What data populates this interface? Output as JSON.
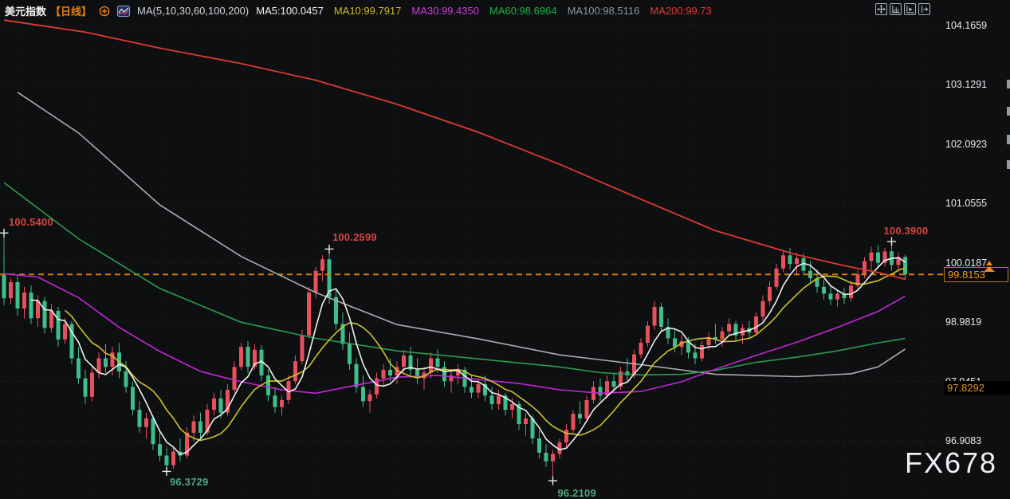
{
  "header": {
    "title": "美元指数",
    "timeframe": "【日线】",
    "ma_params": "MA(5,10,30,60,100,200)",
    "ma_legend": [
      {
        "label": "MA5:100.0457",
        "color": "#f2f2f2"
      },
      {
        "label": "MA10:99.7917",
        "color": "#cdbd29"
      },
      {
        "label": "MA30:99.4350",
        "color": "#c93fd6"
      },
      {
        "label": "MA60:98.6964",
        "color": "#1db34a"
      },
      {
        "label": "MA100:98.5116",
        "color": "#8f97a1"
      },
      {
        "label": "MA200:99.73",
        "color": "#e23a2e"
      }
    ]
  },
  "toolbar": {
    "icons": [
      "move-icon",
      "scale-bars-icon",
      "scale-play-icon",
      "pan-right-icon"
    ]
  },
  "axis": {
    "ticks": [
      {
        "text": "104.1659",
        "price": 104.1659
      },
      {
        "text": "103.1291",
        "price": 103.1291
      },
      {
        "text": "102.0923",
        "price": 102.0923
      },
      {
        "text": "101.0555",
        "price": 101.0555
      },
      {
        "text": "100.0187",
        "price": 100.0187
      },
      {
        "text": "98.9819",
        "price": 98.9819
      },
      {
        "text": "97.9451",
        "price": 97.9451
      },
      {
        "text": "96.9083",
        "price": 96.9083
      }
    ]
  },
  "price_line": {
    "label": "99.8153",
    "price": 99.8153
  },
  "level_label": {
    "label": "97.8292",
    "price": 97.8292
  },
  "watermark": "FX678",
  "colors": {
    "up_candle": "#e8515c",
    "down_candle": "#3fbe8b",
    "price_line": "#cf7d08",
    "annotation_high": "#d9453f",
    "annotation_low": "#4fa87d",
    "cross_marker": "#e8e8e8"
  },
  "chart_data": {
    "type": "candlestick",
    "title": "美元指数 日线 (US Dollar Index, daily)",
    "ylim": [
      95.95,
      104.45
    ],
    "y_axis_ticks": [
      104.1659,
      103.1291,
      102.0923,
      101.0555,
      100.0187,
      98.9819,
      97.9451,
      96.9083
    ],
    "last_price": 99.8153,
    "grid": true,
    "legend_position": "top",
    "candles": [
      [
        99.82,
        100.54,
        99.28,
        99.4
      ],
      [
        99.4,
        99.75,
        99.3,
        99.68
      ],
      [
        99.68,
        99.8,
        99.1,
        99.22
      ],
      [
        99.22,
        99.6,
        99.05,
        99.5
      ],
      [
        99.5,
        99.62,
        98.95,
        99.05
      ],
      [
        99.05,
        99.45,
        98.9,
        99.35
      ],
      [
        99.35,
        99.42,
        98.78,
        98.88
      ],
      [
        98.88,
        99.3,
        98.8,
        99.18
      ],
      [
        99.18,
        99.25,
        98.55,
        98.68
      ],
      [
        98.68,
        99.05,
        98.6,
        98.95
      ],
      [
        98.95,
        99.0,
        98.25,
        98.35
      ],
      [
        98.35,
        98.55,
        97.9,
        98.0
      ],
      [
        98.0,
        98.15,
        97.55,
        97.68
      ],
      [
        97.68,
        98.2,
        97.6,
        98.1
      ],
      [
        98.1,
        98.45,
        98.0,
        98.35
      ],
      [
        98.35,
        98.6,
        98.1,
        98.2
      ],
      [
        98.2,
        98.55,
        98.05,
        98.45
      ],
      [
        98.45,
        98.62,
        98.0,
        98.12
      ],
      [
        98.12,
        98.3,
        97.75,
        97.85
      ],
      [
        97.85,
        97.95,
        97.35,
        97.45
      ],
      [
        97.45,
        97.6,
        97.05,
        97.15
      ],
      [
        97.15,
        97.4,
        96.95,
        97.3
      ],
      [
        97.3,
        97.35,
        96.75,
        96.85
      ],
      [
        96.85,
        97.05,
        96.55,
        96.65
      ],
      [
        96.65,
        96.8,
        96.37,
        96.48
      ],
      [
        96.48,
        96.8,
        96.42,
        96.72
      ],
      [
        96.72,
        96.95,
        96.55,
        96.65
      ],
      [
        96.65,
        97.15,
        96.6,
        97.05
      ],
      [
        97.05,
        97.35,
        96.9,
        97.25
      ],
      [
        97.25,
        97.4,
        96.95,
        97.05
      ],
      [
        97.05,
        97.55,
        97.0,
        97.45
      ],
      [
        97.45,
        97.75,
        97.35,
        97.65
      ],
      [
        97.65,
        97.8,
        97.3,
        97.4
      ],
      [
        97.4,
        97.9,
        97.35,
        97.8
      ],
      [
        97.8,
        98.3,
        97.75,
        98.2
      ],
      [
        98.2,
        98.62,
        98.15,
        98.55
      ],
      [
        98.55,
        98.65,
        98.1,
        98.2
      ],
      [
        98.2,
        98.6,
        98.15,
        98.5
      ],
      [
        98.5,
        98.58,
        97.95,
        98.05
      ],
      [
        98.05,
        98.15,
        97.6,
        97.7
      ],
      [
        97.7,
        97.85,
        97.4,
        97.5
      ],
      [
        97.5,
        97.7,
        97.35,
        97.62
      ],
      [
        97.62,
        98.05,
        97.55,
        97.95
      ],
      [
        97.95,
        98.4,
        97.9,
        98.3
      ],
      [
        98.3,
        98.85,
        98.25,
        98.75
      ],
      [
        98.75,
        99.6,
        98.7,
        99.5
      ],
      [
        99.5,
        99.95,
        99.4,
        99.88
      ],
      [
        99.88,
        100.15,
        99.7,
        100.08
      ],
      [
        100.08,
        100.26,
        99.3,
        99.42
      ],
      [
        99.42,
        99.55,
        98.85,
        98.95
      ],
      [
        98.95,
        99.15,
        98.5,
        98.6
      ],
      [
        98.6,
        98.8,
        98.15,
        98.25
      ],
      [
        98.25,
        98.35,
        97.75,
        97.85
      ],
      [
        97.85,
        98.05,
        97.5,
        97.6
      ],
      [
        97.6,
        97.8,
        97.4,
        97.72
      ],
      [
        97.72,
        98.1,
        97.65,
        98.0
      ],
      [
        98.0,
        98.25,
        97.85,
        98.15
      ],
      [
        98.15,
        98.35,
        97.95,
        98.05
      ],
      [
        98.05,
        98.3,
        97.9,
        98.2
      ],
      [
        98.2,
        98.5,
        98.1,
        98.4
      ],
      [
        98.4,
        98.55,
        98.05,
        98.15
      ],
      [
        98.15,
        98.35,
        97.9,
        98.0
      ],
      [
        98.0,
        98.2,
        97.8,
        98.1
      ],
      [
        98.1,
        98.45,
        98.0,
        98.35
      ],
      [
        98.35,
        98.5,
        98.1,
        98.2
      ],
      [
        98.2,
        98.3,
        97.85,
        97.95
      ],
      [
        97.95,
        98.15,
        97.75,
        98.05
      ],
      [
        98.05,
        98.25,
        97.9,
        98.15
      ],
      [
        98.15,
        98.2,
        97.75,
        97.85
      ],
      [
        97.85,
        98.05,
        97.65,
        97.75
      ],
      [
        97.75,
        98.0,
        97.65,
        97.9
      ],
      [
        97.9,
        98.05,
        97.6,
        97.7
      ],
      [
        97.7,
        97.85,
        97.45,
        97.55
      ],
      [
        97.55,
        97.8,
        97.45,
        97.7
      ],
      [
        97.7,
        97.75,
        97.35,
        97.45
      ],
      [
        97.45,
        97.65,
        97.3,
        97.55
      ],
      [
        97.55,
        97.6,
        97.1,
        97.2
      ],
      [
        97.2,
        97.4,
        97.0,
        97.3
      ],
      [
        97.3,
        97.35,
        96.85,
        96.95
      ],
      [
        96.95,
        97.1,
        96.6,
        96.7
      ],
      [
        96.7,
        96.85,
        96.45,
        96.55
      ],
      [
        96.55,
        96.75,
        96.21,
        96.68
      ],
      [
        96.68,
        96.95,
        96.6,
        96.88
      ],
      [
        96.88,
        97.2,
        96.8,
        97.1
      ],
      [
        97.1,
        97.45,
        97.05,
        97.38
      ],
      [
        97.38,
        97.6,
        97.2,
        97.3
      ],
      [
        97.3,
        97.7,
        97.25,
        97.62
      ],
      [
        97.62,
        97.95,
        97.55,
        97.85
      ],
      [
        97.85,
        98.0,
        97.6,
        97.7
      ],
      [
        97.7,
        98.05,
        97.65,
        97.95
      ],
      [
        97.95,
        98.1,
        97.75,
        97.85
      ],
      [
        97.85,
        98.2,
        97.8,
        98.12
      ],
      [
        98.12,
        98.35,
        97.95,
        98.05
      ],
      [
        98.05,
        98.5,
        98.0,
        98.42
      ],
      [
        98.42,
        98.7,
        98.35,
        98.62
      ],
      [
        98.62,
        99.0,
        98.55,
        98.92
      ],
      [
        98.92,
        99.35,
        98.85,
        99.25
      ],
      [
        99.25,
        99.32,
        98.8,
        98.9
      ],
      [
        98.9,
        99.05,
        98.6,
        98.7
      ],
      [
        98.7,
        98.85,
        98.45,
        98.55
      ],
      [
        98.55,
        98.75,
        98.4,
        98.65
      ],
      [
        98.65,
        98.72,
        98.35,
        98.45
      ],
      [
        98.45,
        98.6,
        98.25,
        98.35
      ],
      [
        98.35,
        98.65,
        98.3,
        98.58
      ],
      [
        98.58,
        98.8,
        98.5,
        98.72
      ],
      [
        98.72,
        98.95,
        98.6,
        98.68
      ],
      [
        98.68,
        98.9,
        98.55,
        98.82
      ],
      [
        98.82,
        99.05,
        98.75,
        98.95
      ],
      [
        98.95,
        99.0,
        98.65,
        98.75
      ],
      [
        98.75,
        98.95,
        98.6,
        98.88
      ],
      [
        98.88,
        99.0,
        98.7,
        98.8
      ],
      [
        98.8,
        99.15,
        98.75,
        99.08
      ],
      [
        99.08,
        99.45,
        99.0,
        99.35
      ],
      [
        99.35,
        99.7,
        99.28,
        99.6
      ],
      [
        99.6,
        100.0,
        99.55,
        99.92
      ],
      [
        99.92,
        100.22,
        99.85,
        100.15
      ],
      [
        100.15,
        100.28,
        99.9,
        100.0
      ],
      [
        100.0,
        100.2,
        99.8,
        100.1
      ],
      [
        100.1,
        100.18,
        99.8,
        99.88
      ],
      [
        99.88,
        100.05,
        99.65,
        99.75
      ],
      [
        99.75,
        99.9,
        99.5,
        99.6
      ],
      [
        99.6,
        99.72,
        99.38,
        99.48
      ],
      [
        99.48,
        99.6,
        99.28,
        99.38
      ],
      [
        99.38,
        99.55,
        99.25,
        99.48
      ],
      [
        99.48,
        99.58,
        99.3,
        99.4
      ],
      [
        99.4,
        99.7,
        99.35,
        99.62
      ],
      [
        99.62,
        99.9,
        99.55,
        99.82
      ],
      [
        99.82,
        100.12,
        99.75,
        100.05
      ],
      [
        100.05,
        100.3,
        99.85,
        100.2
      ],
      [
        100.2,
        100.33,
        99.92,
        100.02
      ],
      [
        100.02,
        100.28,
        99.95,
        100.22
      ],
      [
        100.22,
        100.39,
        99.88,
        99.98
      ],
      [
        99.98,
        100.2,
        99.85,
        100.12
      ],
      [
        100.12,
        100.16,
        99.72,
        99.815
      ]
    ],
    "ma_computed": [
      {
        "name": "MA5",
        "window": 5,
        "color": "#f0f0f0",
        "last": 100.0457
      },
      {
        "name": "MA10",
        "window": 10,
        "color": "#cfc22a",
        "last": 99.7917
      }
    ],
    "ma_overlays": [
      {
        "name": "MA100",
        "color": "#a9adb3",
        "last": 98.5116,
        "points": [
          [
            2,
            103.0
          ],
          [
            11,
            102.29
          ],
          [
            23,
            101.03
          ],
          [
            35,
            100.13
          ],
          [
            46,
            99.5
          ],
          [
            58,
            98.94
          ],
          [
            70,
            98.69
          ],
          [
            82,
            98.41
          ],
          [
            94,
            98.24
          ],
          [
            105,
            98.07
          ],
          [
            117,
            98.03
          ],
          [
            125,
            98.08
          ],
          [
            129,
            98.2
          ],
          [
            133,
            98.5116
          ]
        ]
      },
      {
        "name": "MA60",
        "color": "#2a9d4e",
        "last": 98.6964,
        "points": [
          [
            0,
            101.42
          ],
          [
            11,
            100.44
          ],
          [
            23,
            99.57
          ],
          [
            35,
            98.98
          ],
          [
            46,
            98.7
          ],
          [
            58,
            98.48
          ],
          [
            70,
            98.34
          ],
          [
            82,
            98.2
          ],
          [
            88,
            98.1
          ],
          [
            94,
            98.06
          ],
          [
            100,
            98.07
          ],
          [
            105,
            98.14
          ],
          [
            111,
            98.28
          ],
          [
            117,
            98.37
          ],
          [
            123,
            98.48
          ],
          [
            129,
            98.62
          ],
          [
            133,
            98.6964
          ]
        ]
      },
      {
        "name": "MA30",
        "color": "#c327d6",
        "last": 99.435,
        "points": [
          [
            0,
            99.83
          ],
          [
            5,
            99.77
          ],
          [
            11,
            99.41
          ],
          [
            17,
            98.89
          ],
          [
            23,
            98.47
          ],
          [
            29,
            98.12
          ],
          [
            35,
            97.94
          ],
          [
            41,
            97.8
          ],
          [
            46,
            97.74
          ],
          [
            52,
            97.88
          ],
          [
            58,
            98.02
          ],
          [
            64,
            98.05
          ],
          [
            70,
            97.98
          ],
          [
            76,
            97.91
          ],
          [
            82,
            97.8
          ],
          [
            88,
            97.74
          ],
          [
            94,
            97.77
          ],
          [
            100,
            97.94
          ],
          [
            105,
            98.16
          ],
          [
            111,
            98.4
          ],
          [
            117,
            98.63
          ],
          [
            123,
            98.89
          ],
          [
            129,
            99.17
          ],
          [
            133,
            99.435
          ]
        ]
      },
      {
        "name": "MA200",
        "color": "#dc3a30",
        "last": 99.73,
        "points": [
          [
            0,
            104.26
          ],
          [
            12,
            104.05
          ],
          [
            23,
            103.77
          ],
          [
            35,
            103.5
          ],
          [
            46,
            103.21
          ],
          [
            58,
            102.79
          ],
          [
            70,
            102.3
          ],
          [
            82,
            101.74
          ],
          [
            94,
            101.13
          ],
          [
            105,
            100.58
          ],
          [
            117,
            100.16
          ],
          [
            124,
            99.97
          ],
          [
            129,
            99.85
          ],
          [
            133,
            99.73
          ]
        ]
      }
    ],
    "annotations": [
      {
        "text": "100.5400",
        "price": 100.54,
        "candle": 0,
        "kind": "high"
      },
      {
        "text": "100.2599",
        "price": 100.2599,
        "candle": 48,
        "kind": "high"
      },
      {
        "text": "100.3900",
        "price": 100.39,
        "candle": 131,
        "kind": "high"
      },
      {
        "text": "96.3729",
        "price": 96.3729,
        "candle": 24,
        "kind": "low"
      },
      {
        "text": "96.2109",
        "price": 96.2109,
        "candle": 81,
        "kind": "low"
      }
    ]
  }
}
